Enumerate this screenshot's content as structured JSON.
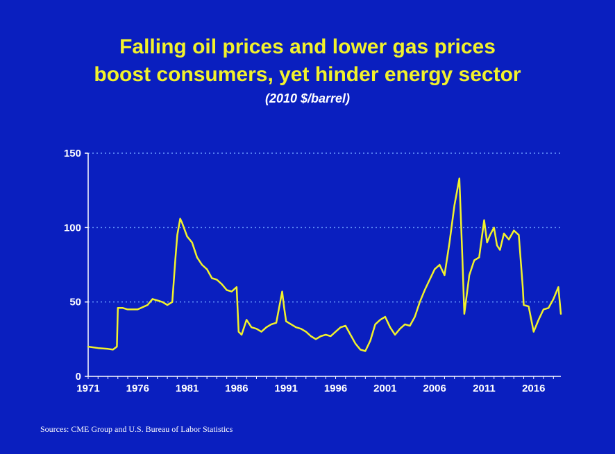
{
  "header": {
    "title_line1": "Falling oil prices and lower gas prices",
    "title_line2": "boost consumers, yet hinder energy sector",
    "subtitle": "(2010 $/barrel)"
  },
  "footer": {
    "source": "Sources: CME Group and U.S. Bureau of Labor Statistics"
  },
  "colors": {
    "background": "#0a1fbf",
    "title": "#f2f22b",
    "line": "#f2f22b",
    "axis_text": "#ffffff",
    "gridline": "#6a9cff"
  },
  "chart_data": {
    "type": "line",
    "title": "Falling oil prices and lower gas prices boost consumers, yet hinder energy sector",
    "subtitle": "(2010 $/barrel)",
    "xlabel": "",
    "ylabel": "",
    "xlim": [
      1971,
      2018.75
    ],
    "ylim": [
      0,
      150
    ],
    "yticks": [
      0,
      50,
      100,
      150
    ],
    "xticks": [
      1971,
      1976,
      1981,
      1986,
      1991,
      1996,
      2001,
      2006,
      2011,
      2016
    ],
    "grid": "horizontal dotted",
    "series": [
      {
        "x": [
          1971.0,
          1972.0,
          1973.0,
          1973.5,
          1973.9,
          1974.0,
          1974.5,
          1975.0,
          1976.0,
          1977.0,
          1977.5,
          1978.0,
          1978.5,
          1979.0,
          1979.5,
          1979.8,
          1980.0,
          1980.3,
          1980.5,
          1981.0,
          1981.5,
          1982.0,
          1982.5,
          1983.0,
          1983.5,
          1984.0,
          1984.5,
          1985.0,
          1985.5,
          1986.0,
          1986.2,
          1986.5,
          1987.0,
          1987.5,
          1988.0,
          1988.5,
          1989.0,
          1989.5,
          1990.0,
          1990.6,
          1990.8,
          1991.0,
          1991.5,
          1992.0,
          1992.5,
          1993.0,
          1993.5,
          1994.0,
          1994.5,
          1995.0,
          1995.5,
          1996.0,
          1996.5,
          1997.0,
          1997.5,
          1998.0,
          1998.5,
          1999.0,
          1999.5,
          2000.0,
          2000.5,
          2001.0,
          2001.5,
          2002.0,
          2002.5,
          2003.0,
          2003.5,
          2004.0,
          2004.5,
          2005.0,
          2005.5,
          2006.0,
          2006.5,
          2007.0,
          2007.5,
          2008.0,
          2008.5,
          2008.8,
          2009.0,
          2009.5,
          2010.0,
          2010.5,
          2011.0,
          2011.3,
          2011.6,
          2012.0,
          2012.3,
          2012.6,
          2013.0,
          2013.5,
          2014.0,
          2014.5,
          2014.9,
          2015.0,
          2015.5,
          2016.0,
          2016.5,
          2017.0,
          2017.5,
          2018.0,
          2018.5,
          2018.75
        ],
        "values": [
          20,
          19,
          18.5,
          18,
          20,
          46,
          46,
          45,
          45,
          48,
          52,
          51,
          50,
          48,
          50,
          78,
          95,
          106,
          103,
          94,
          90,
          80,
          75,
          72,
          66,
          65,
          62,
          58,
          57,
          60,
          30,
          28,
          38,
          33,
          32,
          30,
          33,
          35,
          36,
          57,
          46,
          37,
          35,
          33,
          32,
          30,
          27,
          25,
          27,
          28,
          27,
          30,
          33,
          34,
          28,
          22,
          18,
          17,
          24,
          35,
          38,
          40,
          33,
          28,
          32,
          35,
          34,
          40,
          50,
          58,
          65,
          72,
          75,
          68,
          90,
          115,
          133,
          80,
          42,
          68,
          78,
          80,
          105,
          90,
          95,
          100,
          88,
          85,
          96,
          92,
          98,
          95,
          60,
          48,
          47,
          30,
          38,
          45,
          46,
          52,
          60,
          42
        ]
      }
    ]
  }
}
